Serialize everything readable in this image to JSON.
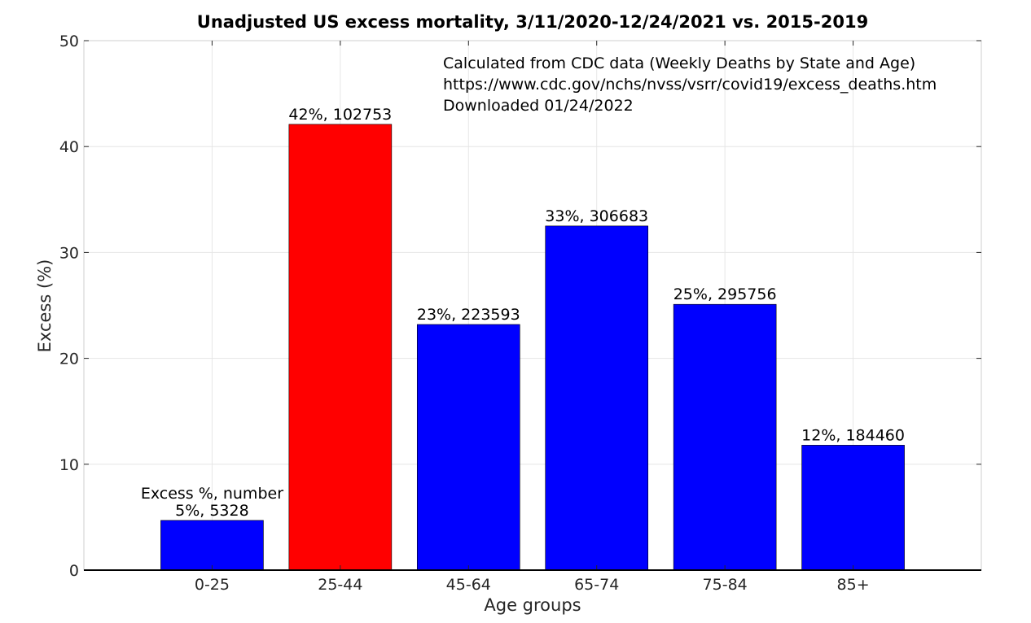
{
  "chart_data": {
    "type": "bar",
    "title": "Unadjusted US excess mortality, 3/11/2020-12/24/2021 vs. 2015-2019",
    "xlabel": "Age groups",
    "ylabel": "Excess (%)",
    "ylim": [
      0,
      50
    ],
    "yticks": [
      "0",
      "10",
      "20",
      "30",
      "40",
      "50"
    ],
    "grid": true,
    "categories": [
      "0-25",
      "25-44",
      "45-64",
      "65-74",
      "75-84",
      "85+"
    ],
    "values": [
      4.7,
      42.1,
      23.2,
      32.5,
      25.1,
      11.8
    ],
    "data_labels": [
      "5%, 5328",
      "42%, 102753",
      "23%, 223593",
      "33%, 306683",
      "25%, 295756",
      "12%, 184460"
    ],
    "bar_colors": [
      "#0000ff",
      "#ff0000",
      "#0000ff",
      "#0000ff",
      "#0000ff",
      "#0000ff"
    ],
    "legend_note": "Excess %, number",
    "annotation_lines": [
      "Calculated from CDC data (Weekly Deaths by State and Age)",
      "https://www.cdc.gov/nchs/nvss/vsrr/covid19/excess_deaths.htm",
      "Downloaded 01/24/2022"
    ]
  }
}
